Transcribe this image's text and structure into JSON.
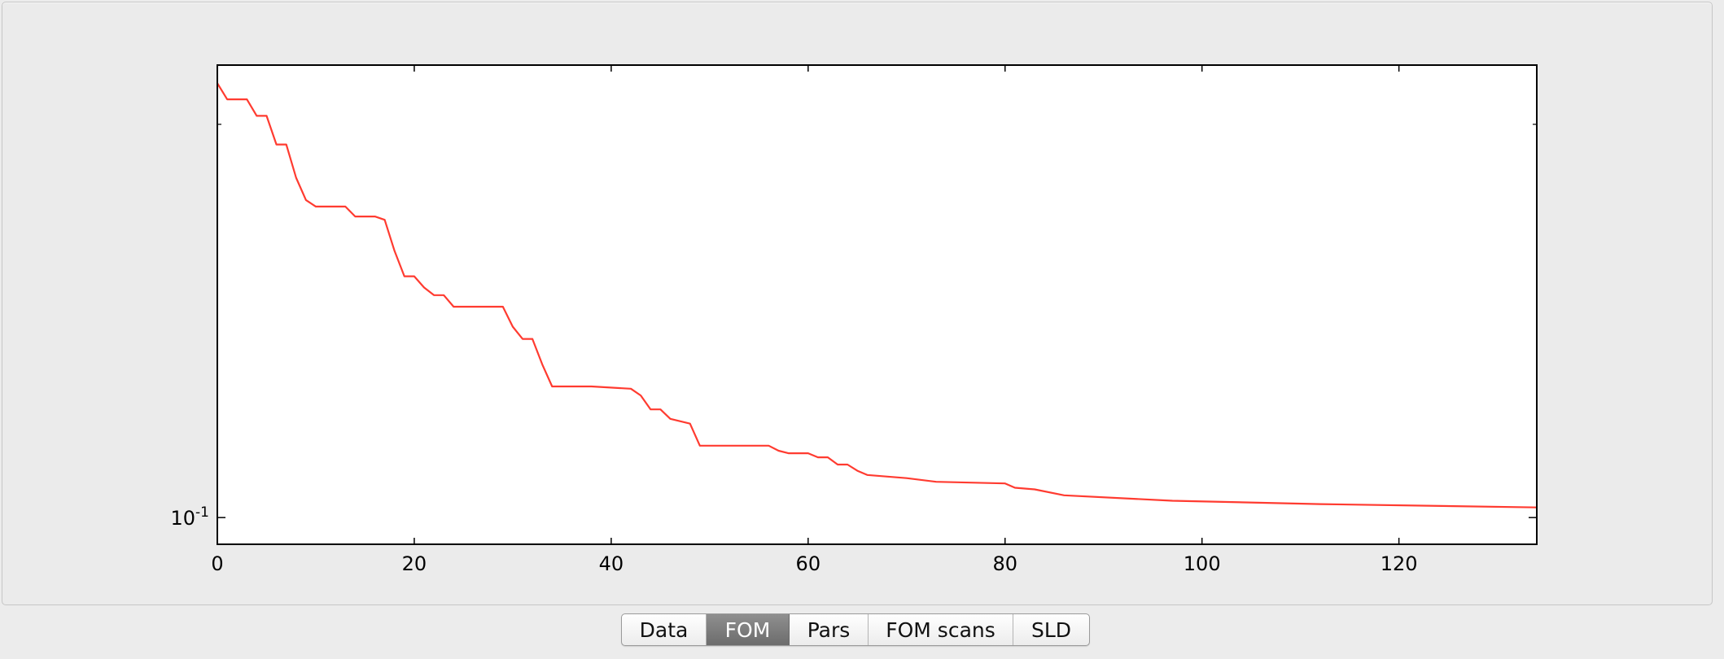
{
  "tabs": [
    {
      "label": "Data",
      "active": false
    },
    {
      "label": "FOM",
      "active": true
    },
    {
      "label": "Pars",
      "active": false
    },
    {
      "label": "FOM scans",
      "active": false
    },
    {
      "label": "SLD",
      "active": false
    }
  ],
  "chart_data": {
    "type": "line",
    "title": "",
    "xlabel": "",
    "ylabel": "",
    "y_scale": "log",
    "grid": false,
    "line_color": "#ff3b30",
    "xlim": [
      0,
      134
    ],
    "ylim": [
      0.0954,
      0.222
    ],
    "x_ticks": [
      0,
      20,
      40,
      60,
      80,
      100,
      120
    ],
    "x_tick_labels": [
      "0",
      "20",
      "40",
      "60",
      "80",
      "100",
      "120"
    ],
    "y_ticks": [
      0.1
    ],
    "y_tick_labels": [
      {
        "base": "10",
        "exp": "-1"
      }
    ],
    "series": [
      {
        "x": [
          0,
          1,
          3,
          4,
          5,
          6,
          7,
          8,
          9,
          10,
          13,
          14,
          16,
          17,
          18,
          19,
          20,
          21,
          22,
          23,
          24,
          29,
          30,
          31,
          32,
          33,
          34,
          38,
          42,
          43,
          44,
          45,
          46,
          48,
          49,
          56,
          57,
          58,
          60,
          61,
          62,
          63,
          64,
          65,
          66,
          70,
          73,
          80,
          81,
          83,
          86,
          97,
          112,
          134
        ],
        "values": [
          0.215,
          0.209,
          0.209,
          0.203,
          0.203,
          0.193,
          0.193,
          0.182,
          0.175,
          0.173,
          0.173,
          0.17,
          0.17,
          0.169,
          0.16,
          0.153,
          0.153,
          0.15,
          0.148,
          0.148,
          0.145,
          0.145,
          0.14,
          0.137,
          0.137,
          0.131,
          0.126,
          0.126,
          0.1255,
          0.124,
          0.121,
          0.121,
          0.119,
          0.118,
          0.1135,
          0.1135,
          0.1125,
          0.112,
          0.112,
          0.1112,
          0.1112,
          0.1098,
          0.1098,
          0.1086,
          0.1078,
          0.1072,
          0.1065,
          0.1062,
          0.1054,
          0.1051,
          0.104,
          0.103,
          0.1024,
          0.1018
        ]
      }
    ]
  }
}
